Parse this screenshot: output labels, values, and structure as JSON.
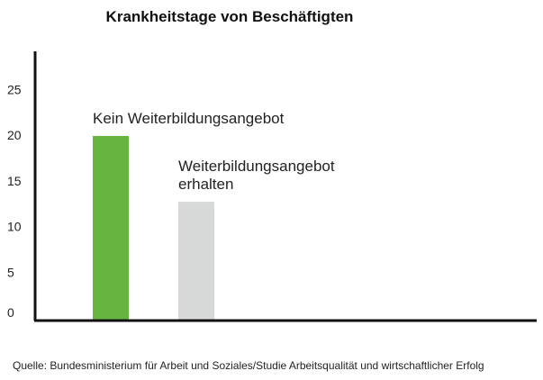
{
  "chart_data": {
    "type": "bar",
    "title": "Krankheitstage von Beschäftigten",
    "categories": [
      "Kein Weiterbildungsangebot",
      "Weiterbildungsangebot erhalten"
    ],
    "category_label_lines": [
      [
        "Kein Weiterbildungsangebot"
      ],
      [
        "Weiterbildungsangebot",
        "erhalten"
      ]
    ],
    "values": [
      19.9,
      12.7
    ],
    "colors": [
      "#67b53e",
      "#d7d9d8"
    ],
    "yticks": [
      0,
      5,
      10,
      15,
      20,
      25
    ],
    "ylim": [
      0,
      29
    ],
    "xlabel": "",
    "ylabel": "",
    "grid": false,
    "legend": "none"
  },
  "source": "Quelle: Bundesministerium für Arbeit und Soziales/Studie Arbeitsqualität und wirtschaftlicher Erfolg"
}
